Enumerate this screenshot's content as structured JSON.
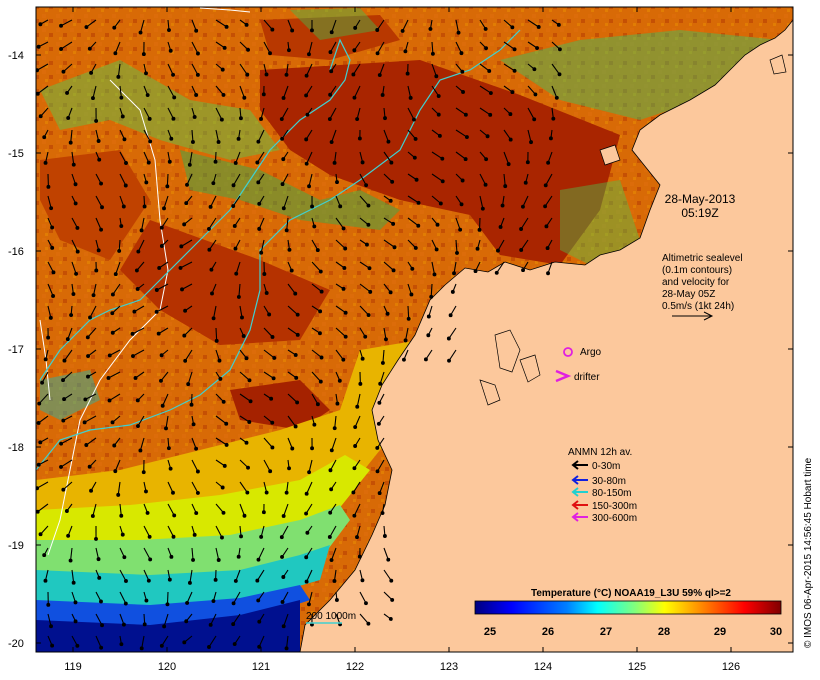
{
  "map": {
    "date": "28-May-2013",
    "time": "05:19Z",
    "lat_ticks": [
      "-14",
      "-15",
      "-16",
      "-17",
      "-18",
      "-19",
      "-20"
    ],
    "lon_ticks": [
      "119",
      "120",
      "121",
      "122",
      "123",
      "124",
      "125",
      "126"
    ],
    "info_lines": [
      "Altimetric sealevel",
      "(0.1m contours)",
      "and velocity for",
      "28-May 05Z",
      "0.5m/s (1kt 24h)"
    ],
    "argo_label": "Argo",
    "drifter_label": "drifter",
    "argo_color": "#e020e0",
    "drifter_color": "#e020e0",
    "contour_scale_label": "200  1000m",
    "land_color": "#fcc89c",
    "bathy_line_color": "#40d0d0"
  },
  "legend": {
    "title": "ANMN 12h av.",
    "items": [
      {
        "label": "0-30m",
        "color": "#000000"
      },
      {
        "label": "30-80m",
        "color": "#1020e0"
      },
      {
        "label": "80-150m",
        "color": "#20d0d0"
      },
      {
        "label": "150-300m",
        "color": "#e01010"
      },
      {
        "label": "300-600m",
        "color": "#e020e0"
      }
    ]
  },
  "colorbar": {
    "title": "Temperature (°C) NOAA19_L3U 59% ql>=2",
    "ticks": [
      "25",
      "26",
      "27",
      "28",
      "29",
      "30"
    ],
    "colors": [
      "#00007f",
      "#0000ff",
      "#007fff",
      "#00ffff",
      "#7fff7f",
      "#ffff00",
      "#ff7f00",
      "#ff0000",
      "#7f0000"
    ]
  },
  "credit": "© IMOS 06-Apr-2015 14:56:45 Hobart time"
}
